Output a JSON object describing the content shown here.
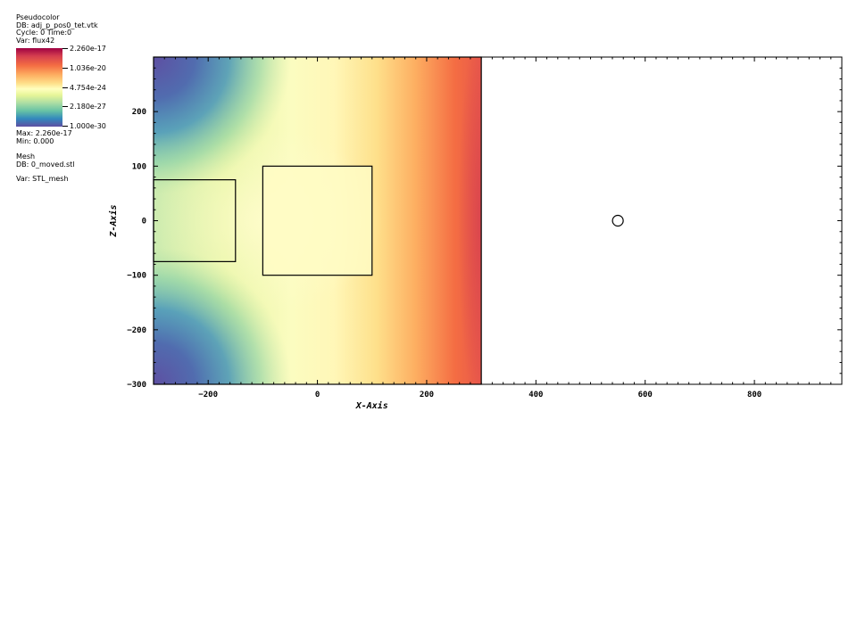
{
  "legend": {
    "plot_type": "Pseudocolor",
    "db": "DB: adj_p_pos0_tet.vtk",
    "cycle_time": "Cycle: 0      Time:0",
    "var": "Var: flux42",
    "colorbar_labels": [
      "2.260e-17",
      "1.036e-20",
      "4.754e-24",
      "2.180e-27",
      "1.000e-30"
    ],
    "max": "Max:  2.260e-17",
    "min": "Min:  0.000"
  },
  "mesh_legend": {
    "title": "Mesh",
    "db": "DB: 0_moved.stl",
    "var": "Var: STL_mesh"
  },
  "colors": {
    "colormap": [
      "#9e0142",
      "#d53e4f",
      "#f46d43",
      "#fdae61",
      "#fee08b",
      "#ffffbf",
      "#e6f598",
      "#abdda4",
      "#66c2a5",
      "#3288bd",
      "#5e4fa2"
    ]
  },
  "chart_data": {
    "type": "heatmap",
    "title": "",
    "xlabel": "X-Axis",
    "ylabel": "Z-Axis",
    "xlim": [
      -300,
      960
    ],
    "ylim": [
      -300,
      300
    ],
    "x_ticks": [
      -200,
      0,
      200,
      400,
      600,
      800
    ],
    "y_ticks": [
      -300,
      -200,
      -100,
      0,
      100,
      200
    ],
    "x_tick_labels": [
      "−200",
      "0",
      "200",
      "400",
      "600",
      "800"
    ],
    "y_tick_labels": [
      "−300",
      "−200",
      "−100",
      "0",
      "100",
      "200"
    ],
    "field_extent": {
      "x": [
        -300,
        300
      ],
      "z": [
        -300,
        300
      ]
    },
    "color_scale": "log",
    "value_range": [
      1e-30,
      2.26e-17
    ],
    "mesh_rects": [
      {
        "x": [
          -300,
          -150
        ],
        "z": [
          -75,
          75
        ]
      },
      {
        "x": [
          -100,
          100
        ],
        "z": [
          -100,
          100
        ]
      }
    ],
    "mesh_circle": {
      "center": [
        550,
        0
      ],
      "radius": 10
    }
  }
}
